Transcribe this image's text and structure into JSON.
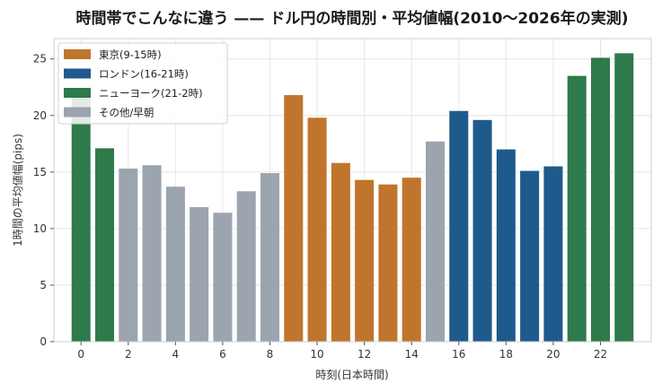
{
  "chart_data": {
    "type": "bar",
    "title": "時間帯でこんなに違う —— ドル円の時間別・平均値幅(2010〜2026年の実測)",
    "xlabel": "時刻(日本時間)",
    "ylabel": "1時間の平均値幅(pips)",
    "ylim": [
      0,
      26.8
    ],
    "xlim": [
      -1.15,
      24.15
    ],
    "x_ticks": [
      0,
      2,
      4,
      6,
      8,
      10,
      12,
      14,
      16,
      18,
      20,
      22
    ],
    "y_ticks": [
      0,
      5,
      10,
      15,
      20,
      25
    ],
    "grid": true,
    "legend_position": "top-left",
    "categories": [
      0,
      1,
      2,
      3,
      4,
      5,
      6,
      7,
      8,
      9,
      10,
      11,
      12,
      13,
      14,
      15,
      16,
      17,
      18,
      19,
      20,
      21,
      22,
      23
    ],
    "values": [
      22.2,
      17.1,
      15.3,
      15.6,
      13.7,
      11.9,
      11.4,
      13.3,
      14.9,
      21.8,
      19.8,
      15.8,
      14.3,
      13.9,
      14.5,
      17.7,
      20.4,
      19.6,
      17.0,
      15.1,
      15.5,
      23.5,
      25.1,
      25.5
    ],
    "bar_groups": [
      "ny",
      "ny",
      "other",
      "other",
      "other",
      "other",
      "other",
      "other",
      "other",
      "tokyo",
      "tokyo",
      "tokyo",
      "tokyo",
      "tokyo",
      "tokyo",
      "other",
      "london",
      "london",
      "london",
      "london",
      "london",
      "ny",
      "ny",
      "ny"
    ],
    "legend": [
      {
        "key": "tokyo",
        "label": "東京(9-15時)",
        "color": "#c0752c"
      },
      {
        "key": "london",
        "label": "ロンドン(16-21時)",
        "color": "#1f5a8c"
      },
      {
        "key": "ny",
        "label": "ニューヨーク(21-2時)",
        "color": "#2e7a4b"
      },
      {
        "key": "other",
        "label": "その他/早朝",
        "color": "#9ba4af"
      }
    ]
  }
}
